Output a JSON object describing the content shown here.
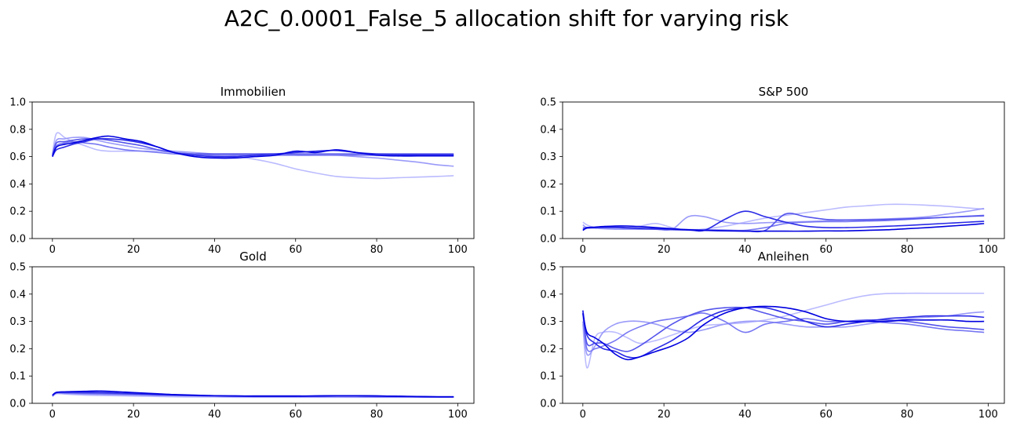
{
  "figure": {
    "title": "A2C_0.0001_False_5 allocation shift for varying risk"
  },
  "series_colors": [
    "#bbbbff",
    "#9a9af9",
    "#7777f3",
    "#5555ec",
    "#2a2ae6",
    "#0000e0"
  ],
  "chart_data": [
    {
      "type": "line",
      "title": "Immobilien",
      "xlabel": "",
      "ylabel": "",
      "xlim": [
        -5,
        104
      ],
      "ylim": [
        0,
        1.0
      ],
      "xticks": [
        0,
        20,
        40,
        60,
        80,
        100
      ],
      "yticks": [
        0.0,
        0.2,
        0.4,
        0.6,
        0.8,
        1.0
      ],
      "grid": false,
      "x": [
        0,
        1,
        3,
        5,
        8,
        11,
        14,
        18,
        22,
        26,
        30,
        35,
        40,
        45,
        50,
        55,
        60,
        65,
        70,
        75,
        80,
        85,
        90,
        95,
        99
      ],
      "series": [
        {
          "values": [
            0.62,
            0.77,
            0.74,
            0.71,
            0.68,
            0.65,
            0.64,
            0.64,
            0.64,
            0.64,
            0.63,
            0.62,
            0.61,
            0.6,
            0.58,
            0.55,
            0.51,
            0.48,
            0.455,
            0.445,
            0.44,
            0.445,
            0.45,
            0.455,
            0.46
          ]
        },
        {
          "values": [
            0.61,
            0.72,
            0.73,
            0.74,
            0.74,
            0.72,
            0.7,
            0.68,
            0.66,
            0.65,
            0.64,
            0.63,
            0.62,
            0.62,
            0.62,
            0.62,
            0.61,
            0.61,
            0.61,
            0.6,
            0.59,
            0.575,
            0.56,
            0.54,
            0.53
          ]
        },
        {
          "values": [
            0.6,
            0.68,
            0.7,
            0.71,
            0.7,
            0.69,
            0.67,
            0.65,
            0.64,
            0.63,
            0.62,
            0.615,
            0.61,
            0.61,
            0.61,
            0.61,
            0.61,
            0.61,
            0.61,
            0.61,
            0.61,
            0.61,
            0.61,
            0.61,
            0.61
          ]
        },
        {
          "values": [
            0.61,
            0.7,
            0.71,
            0.72,
            0.73,
            0.73,
            0.72,
            0.7,
            0.68,
            0.65,
            0.63,
            0.62,
            0.62,
            0.62,
            0.62,
            0.62,
            0.62,
            0.62,
            0.62,
            0.62,
            0.62,
            0.62,
            0.62,
            0.62,
            0.62
          ]
        },
        {
          "values": [
            0.6,
            0.65,
            0.67,
            0.69,
            0.71,
            0.73,
            0.73,
            0.72,
            0.7,
            0.67,
            0.63,
            0.61,
            0.6,
            0.6,
            0.61,
            0.62,
            0.63,
            0.64,
            0.645,
            0.63,
            0.62,
            0.615,
            0.615,
            0.615,
            0.615
          ]
        },
        {
          "values": [
            0.6,
            0.67,
            0.69,
            0.7,
            0.72,
            0.74,
            0.75,
            0.73,
            0.71,
            0.67,
            0.63,
            0.6,
            0.59,
            0.59,
            0.6,
            0.61,
            0.64,
            0.63,
            0.65,
            0.63,
            0.61,
            0.605,
            0.605,
            0.605,
            0.605
          ]
        }
      ]
    },
    {
      "type": "line",
      "title": "S&P 500",
      "xlabel": "",
      "ylabel": "",
      "xlim": [
        -5,
        104
      ],
      "ylim": [
        0,
        0.5
      ],
      "xticks": [
        0,
        20,
        40,
        60,
        80,
        100
      ],
      "yticks": [
        0.0,
        0.1,
        0.2,
        0.3,
        0.4,
        0.5
      ],
      "grid": false,
      "x": [
        0,
        1,
        3,
        5,
        8,
        11,
        14,
        18,
        22,
        26,
        30,
        35,
        40,
        45,
        50,
        55,
        60,
        65,
        70,
        75,
        80,
        85,
        90,
        95,
        99
      ],
      "series": [
        {
          "values": [
            0.06,
            0.05,
            0.04,
            0.04,
            0.035,
            0.04,
            0.045,
            0.055,
            0.04,
            0.03,
            0.035,
            0.045,
            0.06,
            0.075,
            0.085,
            0.095,
            0.105,
            0.115,
            0.12,
            0.125,
            0.125,
            0.122,
            0.118,
            0.112,
            0.108
          ]
        },
        {
          "values": [
            0.05,
            0.04,
            0.038,
            0.036,
            0.034,
            0.034,
            0.034,
            0.034,
            0.034,
            0.08,
            0.08,
            0.06,
            0.055,
            0.058,
            0.06,
            0.062,
            0.065,
            0.068,
            0.07,
            0.072,
            0.075,
            0.08,
            0.09,
            0.1,
            0.11
          ]
        },
        {
          "values": [
            0.04,
            0.04,
            0.04,
            0.04,
            0.04,
            0.038,
            0.036,
            0.035,
            0.034,
            0.033,
            0.032,
            0.031,
            0.03,
            0.04,
            0.055,
            0.06,
            0.062,
            0.062,
            0.064,
            0.066,
            0.07,
            0.074,
            0.078,
            0.082,
            0.085
          ]
        },
        {
          "values": [
            0.035,
            0.038,
            0.04,
            0.04,
            0.04,
            0.038,
            0.036,
            0.034,
            0.032,
            0.031,
            0.03,
            0.029,
            0.028,
            0.03,
            0.09,
            0.08,
            0.07,
            0.068,
            0.068,
            0.07,
            0.072,
            0.075,
            0.078,
            0.081,
            0.083
          ]
        },
        {
          "values": [
            0.03,
            0.038,
            0.04,
            0.042,
            0.042,
            0.04,
            0.038,
            0.036,
            0.034,
            0.032,
            0.03,
            0.07,
            0.1,
            0.08,
            0.06,
            0.045,
            0.04,
            0.04,
            0.042,
            0.045,
            0.048,
            0.052,
            0.056,
            0.06,
            0.063
          ]
        },
        {
          "values": [
            0.03,
            0.04,
            0.042,
            0.044,
            0.046,
            0.046,
            0.044,
            0.04,
            0.036,
            0.032,
            0.03,
            0.028,
            0.027,
            0.027,
            0.027,
            0.027,
            0.028,
            0.028,
            0.03,
            0.032,
            0.036,
            0.04,
            0.045,
            0.05,
            0.055
          ]
        }
      ]
    },
    {
      "type": "line",
      "title": "Gold",
      "xlabel": "",
      "ylabel": "",
      "xlim": [
        -5,
        104
      ],
      "ylim": [
        0,
        0.5
      ],
      "xticks": [
        0,
        20,
        40,
        60,
        80,
        100
      ],
      "yticks": [
        0.0,
        0.1,
        0.2,
        0.3,
        0.4,
        0.5
      ],
      "grid": false,
      "x": [
        0,
        1,
        3,
        5,
        8,
        11,
        14,
        18,
        22,
        26,
        30,
        35,
        40,
        45,
        50,
        55,
        60,
        65,
        70,
        75,
        80,
        85,
        90,
        95,
        99
      ],
      "series": [
        {
          "values": [
            0.025,
            0.035,
            0.034,
            0.032,
            0.03,
            0.029,
            0.028,
            0.027,
            0.026,
            0.025,
            0.024,
            0.023,
            0.023,
            0.022,
            0.022,
            0.022,
            0.022,
            0.022,
            0.022,
            0.022,
            0.022,
            0.022,
            0.022,
            0.022,
            0.022
          ]
        },
        {
          "values": [
            0.026,
            0.037,
            0.036,
            0.035,
            0.034,
            0.033,
            0.032,
            0.031,
            0.03,
            0.029,
            0.028,
            0.027,
            0.026,
            0.025,
            0.024,
            0.024,
            0.024,
            0.024,
            0.024,
            0.023,
            0.023,
            0.023,
            0.023,
            0.023,
            0.023
          ]
        },
        {
          "values": [
            0.027,
            0.038,
            0.038,
            0.037,
            0.036,
            0.035,
            0.034,
            0.033,
            0.032,
            0.03,
            0.029,
            0.028,
            0.027,
            0.026,
            0.025,
            0.025,
            0.025,
            0.025,
            0.025,
            0.025,
            0.024,
            0.024,
            0.023,
            0.023,
            0.023
          ]
        },
        {
          "values": [
            0.028,
            0.039,
            0.039,
            0.039,
            0.038,
            0.038,
            0.037,
            0.035,
            0.033,
            0.031,
            0.03,
            0.028,
            0.027,
            0.026,
            0.026,
            0.026,
            0.026,
            0.026,
            0.027,
            0.027,
            0.026,
            0.025,
            0.024,
            0.023,
            0.023
          ]
        },
        {
          "values": [
            0.029,
            0.04,
            0.041,
            0.041,
            0.041,
            0.04,
            0.039,
            0.037,
            0.035,
            0.033,
            0.031,
            0.029,
            0.028,
            0.027,
            0.027,
            0.027,
            0.027,
            0.027,
            0.028,
            0.028,
            0.027,
            0.026,
            0.025,
            0.024,
            0.024
          ]
        },
        {
          "values": [
            0.03,
            0.04,
            0.042,
            0.043,
            0.044,
            0.045,
            0.044,
            0.041,
            0.038,
            0.035,
            0.032,
            0.03,
            0.028,
            0.027,
            0.026,
            0.026,
            0.026,
            0.027,
            0.028,
            0.028,
            0.027,
            0.026,
            0.025,
            0.024,
            0.024
          ]
        }
      ]
    },
    {
      "type": "line",
      "title": "Anleihen",
      "xlabel": "",
      "ylabel": "",
      "xlim": [
        -5,
        104
      ],
      "ylim": [
        0,
        0.5
      ],
      "xticks": [
        0,
        20,
        40,
        60,
        80,
        100
      ],
      "yticks": [
        0.0,
        0.1,
        0.2,
        0.3,
        0.4,
        0.5
      ],
      "grid": false,
      "x": [
        0,
        1,
        3,
        5,
        8,
        11,
        14,
        18,
        22,
        26,
        30,
        35,
        40,
        45,
        50,
        55,
        60,
        65,
        70,
        75,
        80,
        85,
        90,
        95,
        99
      ],
      "series": [
        {
          "values": [
            0.29,
            0.13,
            0.24,
            0.26,
            0.26,
            0.24,
            0.22,
            0.23,
            0.25,
            0.27,
            0.285,
            0.29,
            0.295,
            0.305,
            0.32,
            0.34,
            0.36,
            0.38,
            0.395,
            0.402,
            0.403,
            0.403,
            0.403,
            0.403,
            0.403
          ]
        },
        {
          "values": [
            0.3,
            0.18,
            0.21,
            0.26,
            0.29,
            0.3,
            0.3,
            0.29,
            0.27,
            0.26,
            0.27,
            0.29,
            0.3,
            0.3,
            0.29,
            0.28,
            0.28,
            0.28,
            0.29,
            0.3,
            0.31,
            0.315,
            0.32,
            0.33,
            0.335
          ]
        },
        {
          "values": [
            0.33,
            0.2,
            0.2,
            0.21,
            0.23,
            0.26,
            0.28,
            0.3,
            0.31,
            0.32,
            0.33,
            0.3,
            0.26,
            0.29,
            0.3,
            0.31,
            0.3,
            0.3,
            0.3,
            0.295,
            0.29,
            0.28,
            0.27,
            0.265,
            0.26
          ]
        },
        {
          "values": [
            0.34,
            0.22,
            0.22,
            0.22,
            0.2,
            0.19,
            0.21,
            0.25,
            0.29,
            0.32,
            0.34,
            0.35,
            0.35,
            0.33,
            0.31,
            0.3,
            0.29,
            0.3,
            0.305,
            0.305,
            0.3,
            0.29,
            0.28,
            0.275,
            0.27
          ]
        },
        {
          "values": [
            0.34,
            0.25,
            0.22,
            0.2,
            0.19,
            0.17,
            0.17,
            0.2,
            0.23,
            0.27,
            0.31,
            0.34,
            0.35,
            0.35,
            0.33,
            0.3,
            0.28,
            0.29,
            0.3,
            0.31,
            0.315,
            0.32,
            0.32,
            0.32,
            0.315
          ]
        },
        {
          "values": [
            0.33,
            0.26,
            0.24,
            0.22,
            0.18,
            0.16,
            0.17,
            0.19,
            0.21,
            0.24,
            0.29,
            0.33,
            0.35,
            0.355,
            0.35,
            0.335,
            0.31,
            0.3,
            0.3,
            0.3,
            0.305,
            0.305,
            0.305,
            0.3,
            0.3
          ]
        }
      ]
    }
  ]
}
